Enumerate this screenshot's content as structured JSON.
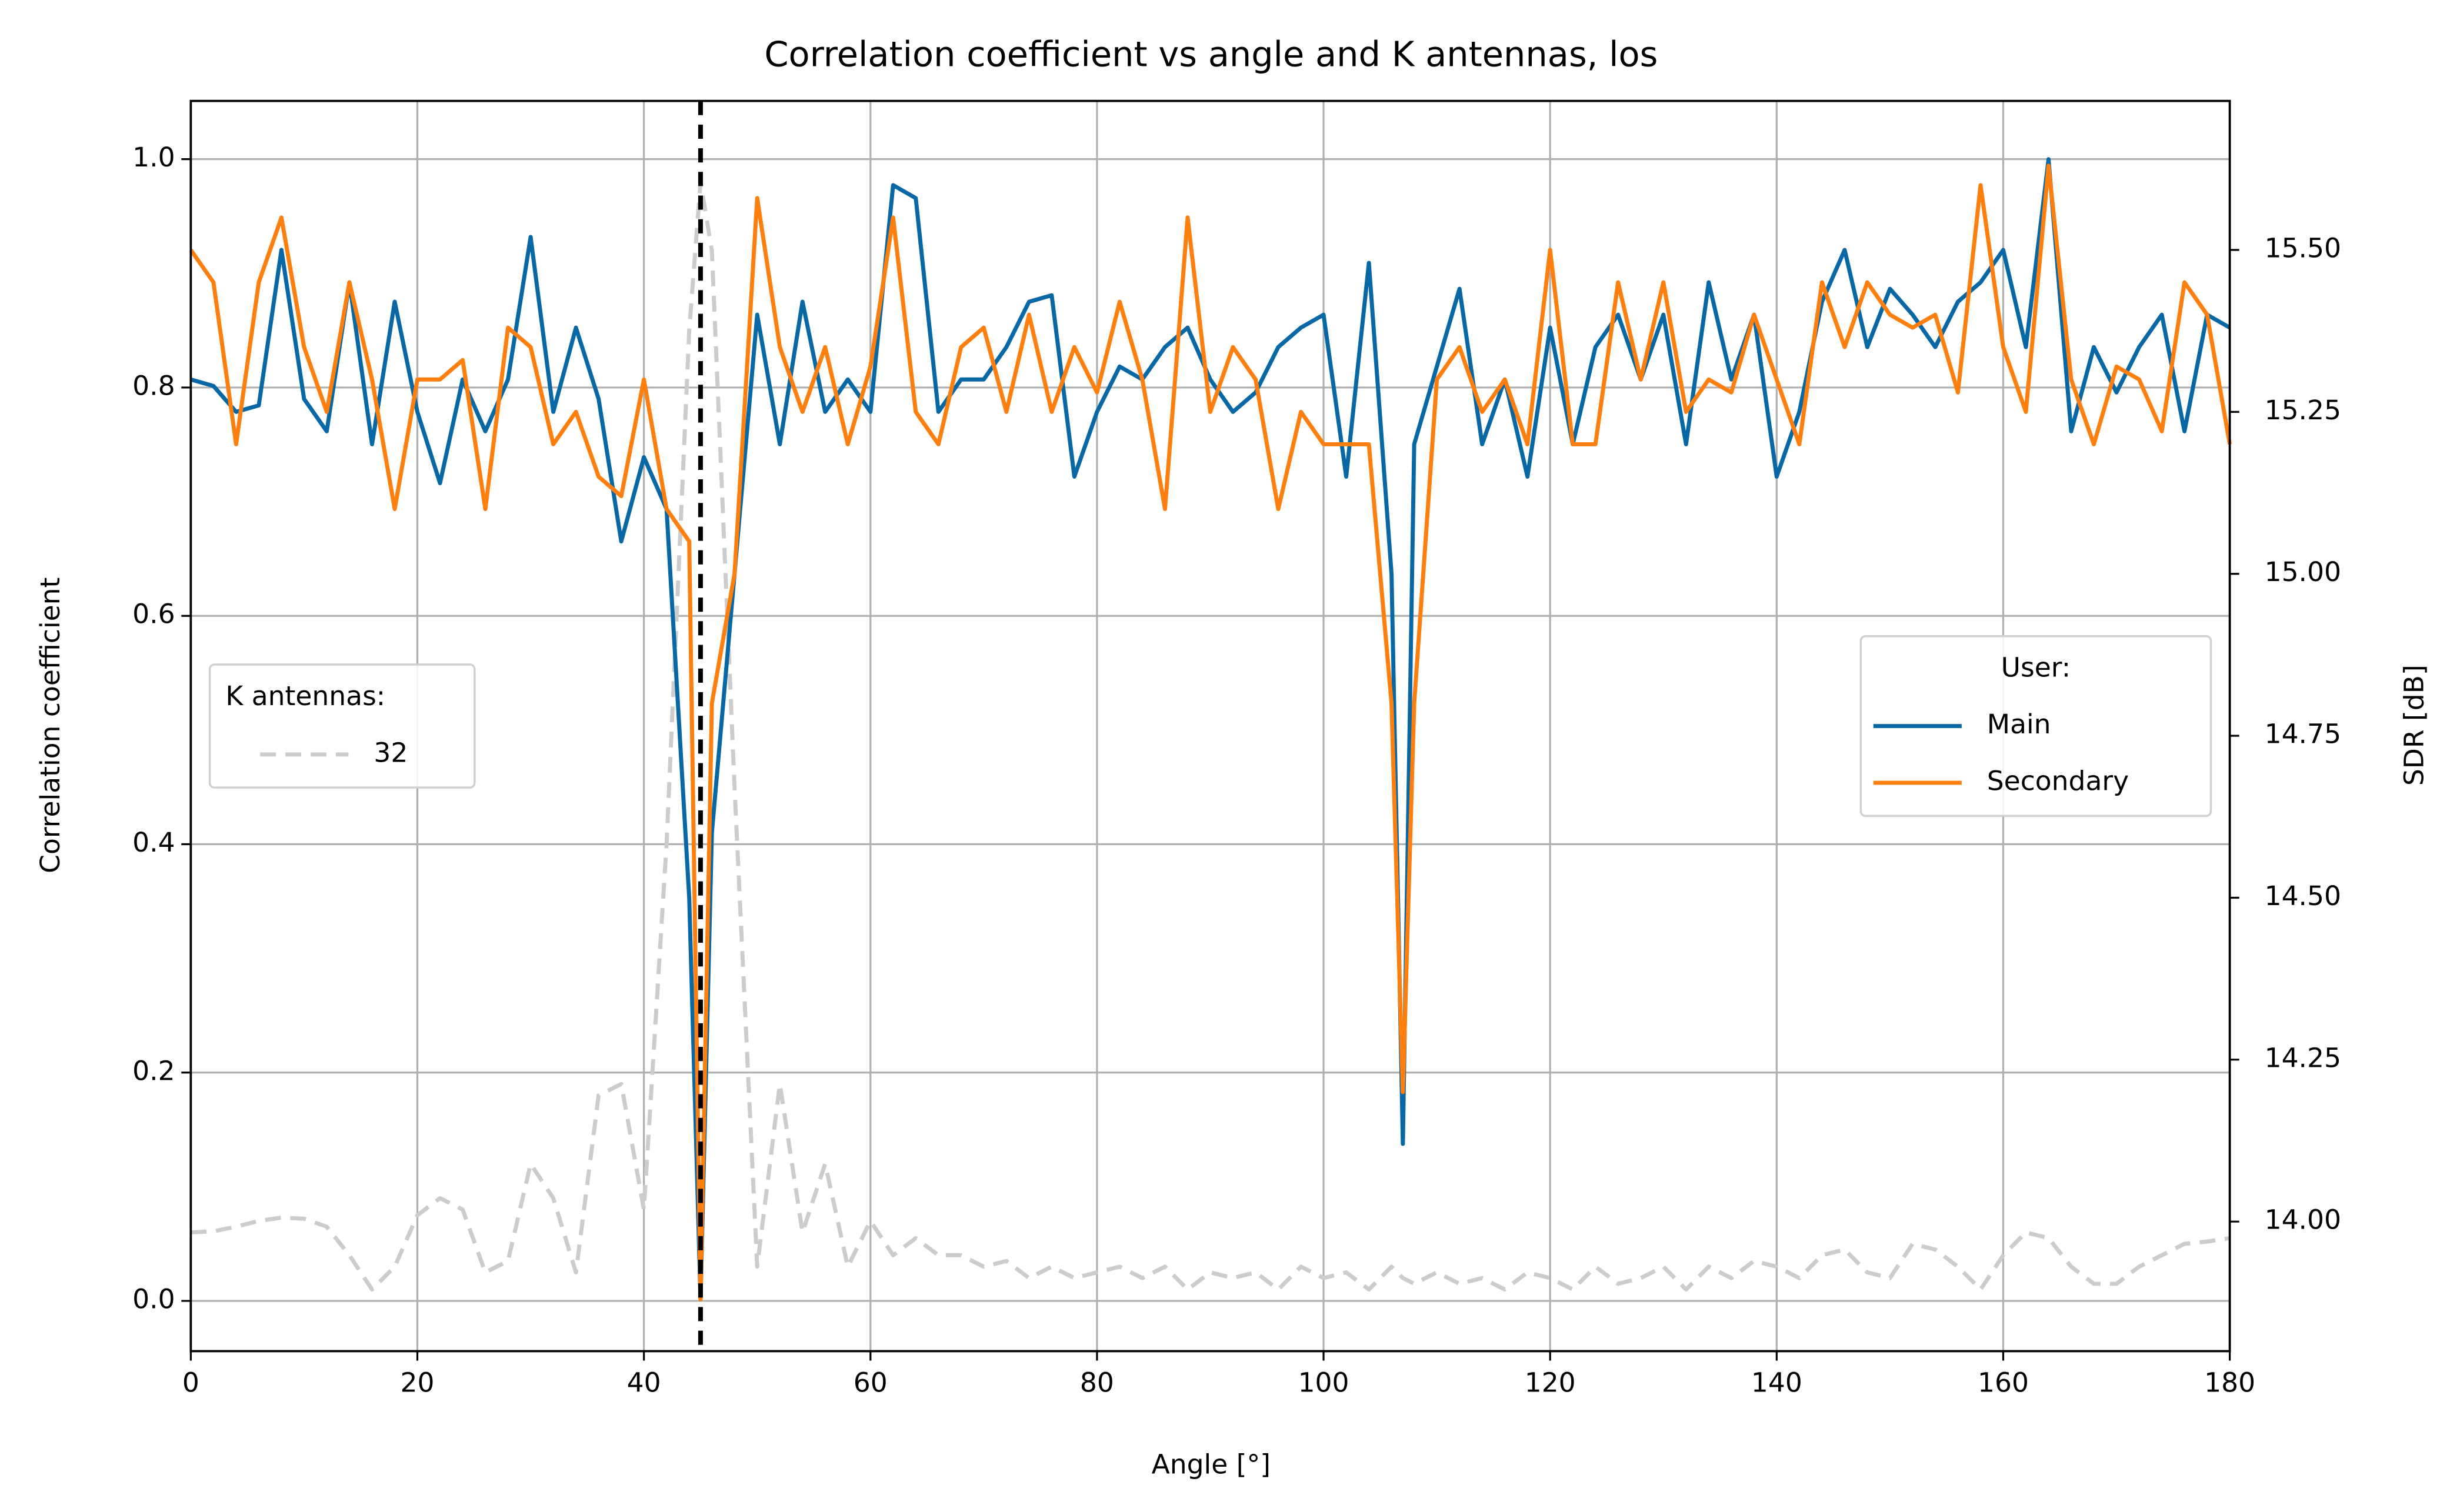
{
  "chart_data": {
    "type": "line",
    "title": "Correlation coefficient vs angle and K antennas, los",
    "xlabel": "Angle [°]",
    "ylabel": "Correlation coefficient",
    "y2label": "SDR [dB]",
    "x": [
      0,
      2,
      4,
      6,
      8,
      10,
      12,
      14,
      16,
      18,
      20,
      22,
      24,
      26,
      28,
      30,
      32,
      34,
      36,
      38,
      40,
      42,
      44,
      45,
      46,
      48,
      50,
      52,
      54,
      56,
      58,
      60,
      62,
      64,
      66,
      68,
      70,
      72,
      74,
      76,
      78,
      80,
      82,
      84,
      86,
      88,
      90,
      92,
      94,
      96,
      98,
      100,
      102,
      104,
      106,
      107,
      108,
      110,
      112,
      114,
      116,
      118,
      120,
      122,
      124,
      126,
      128,
      130,
      132,
      134,
      136,
      138,
      140,
      142,
      144,
      146,
      148,
      150,
      152,
      154,
      156,
      158,
      160,
      162,
      164,
      166,
      168,
      170,
      172,
      174,
      176,
      178,
      180
    ],
    "series": [
      {
        "name": "32",
        "color": "#cccccc",
        "linestyle": "dashed",
        "axis": "y",
        "values": [
          0.06,
          0.061,
          0.065,
          0.07,
          0.073,
          0.072,
          0.065,
          0.04,
          0.01,
          0.03,
          0.075,
          0.09,
          0.08,
          0.025,
          0.035,
          0.12,
          0.09,
          0.025,
          0.18,
          0.19,
          0.08,
          0.4,
          0.85,
          0.98,
          0.92,
          0.45,
          0.03,
          0.19,
          0.06,
          0.12,
          0.03,
          0.07,
          0.04,
          0.055,
          0.04,
          0.04,
          0.03,
          0.035,
          0.02,
          0.03,
          0.02,
          0.025,
          0.03,
          0.02,
          0.03,
          0.01,
          0.025,
          0.02,
          0.025,
          0.01,
          0.03,
          0.02,
          0.025,
          0.01,
          0.03,
          0.02,
          0.015,
          0.025,
          0.015,
          0.02,
          0.01,
          0.025,
          0.02,
          0.01,
          0.03,
          0.015,
          0.02,
          0.03,
          0.01,
          0.03,
          0.02,
          0.035,
          0.03,
          0.02,
          0.04,
          0.045,
          0.025,
          0.02,
          0.05,
          0.045,
          0.03,
          0.01,
          0.04,
          0.06,
          0.055,
          0.03,
          0.015,
          0.015,
          0.03,
          0.04,
          0.05,
          0.052,
          0.055
        ]
      },
      {
        "name": "Main",
        "color": "#0868a6",
        "linestyle": "solid",
        "axis": "y2",
        "values": [
          15.3,
          15.29,
          15.25,
          15.26,
          15.5,
          15.27,
          15.22,
          15.45,
          15.2,
          15.42,
          15.25,
          15.14,
          15.3,
          15.22,
          15.3,
          15.52,
          15.25,
          15.38,
          15.27,
          15.05,
          15.18,
          15.1,
          14.5,
          13.88,
          14.6,
          15.0,
          15.4,
          15.2,
          15.42,
          15.25,
          15.3,
          15.25,
          15.6,
          15.58,
          15.25,
          15.3,
          15.3,
          15.35,
          15.42,
          15.43,
          15.15,
          15.25,
          15.32,
          15.3,
          15.35,
          15.38,
          15.3,
          15.25,
          15.28,
          15.35,
          15.38,
          15.4,
          15.15,
          15.48,
          15.0,
          14.12,
          15.2,
          15.32,
          15.44,
          15.2,
          15.3,
          15.15,
          15.38,
          15.2,
          15.35,
          15.4,
          15.3,
          15.4,
          15.2,
          15.45,
          15.3,
          15.4,
          15.15,
          15.25,
          15.42,
          15.5,
          15.35,
          15.44,
          15.4,
          15.35,
          15.42,
          15.45,
          15.5,
          15.35,
          15.64,
          15.22,
          15.35,
          15.28,
          15.35,
          15.4,
          15.22,
          15.4,
          15.38
        ]
      },
      {
        "name": "Secondary",
        "color": "#ff7f0e",
        "linestyle": "solid",
        "axis": "y2",
        "values": [
          15.5,
          15.45,
          15.2,
          15.45,
          15.55,
          15.35,
          15.25,
          15.45,
          15.3,
          15.1,
          15.3,
          15.3,
          15.33,
          15.1,
          15.38,
          15.35,
          15.2,
          15.25,
          15.15,
          15.12,
          15.3,
          15.1,
          15.05,
          13.88,
          14.8,
          15.0,
          15.58,
          15.35,
          15.25,
          15.35,
          15.2,
          15.32,
          15.55,
          15.25,
          15.2,
          15.35,
          15.38,
          15.25,
          15.4,
          15.25,
          15.35,
          15.28,
          15.42,
          15.3,
          15.1,
          15.55,
          15.25,
          15.35,
          15.3,
          15.1,
          15.25,
          15.2,
          15.2,
          15.2,
          14.8,
          14.2,
          14.8,
          15.3,
          15.35,
          15.25,
          15.3,
          15.2,
          15.5,
          15.2,
          15.2,
          15.45,
          15.3,
          15.45,
          15.25,
          15.3,
          15.28,
          15.4,
          15.3,
          15.2,
          15.45,
          15.35,
          15.45,
          15.4,
          15.38,
          15.4,
          15.28,
          15.6,
          15.35,
          15.25,
          15.63,
          15.3,
          15.2,
          15.32,
          15.3,
          15.22,
          15.45,
          15.4,
          15.2
        ]
      }
    ],
    "vline": 45,
    "xlim": [
      0,
      180
    ],
    "xticks": [
      0,
      20,
      40,
      60,
      80,
      100,
      120,
      140,
      160,
      180
    ],
    "ylim": [
      -0.044,
      1.051
    ],
    "yticks": [
      {
        "value": 0,
        "label": "0.0"
      },
      0.2,
      0.4,
      0.6,
      0.8,
      {
        "value": 1,
        "label": "1.0"
      }
    ],
    "y2lim": [
      13.8,
      15.73
    ],
    "y2ticks": [
      {
        "value": 14,
        "label": "14.00"
      },
      14.25,
      {
        "value": 14.5,
        "label": "14.50"
      },
      14.75,
      {
        "value": 15,
        "label": "15.00"
      },
      15.25,
      {
        "value": 15.5,
        "label": "15.50"
      }
    ],
    "grid": true,
    "legends": [
      {
        "title": "K antennas:",
        "series": [
          0
        ],
        "loc": "center left"
      },
      {
        "title": "User:",
        "series": [
          1,
          2
        ],
        "loc": "center right"
      }
    ]
  }
}
